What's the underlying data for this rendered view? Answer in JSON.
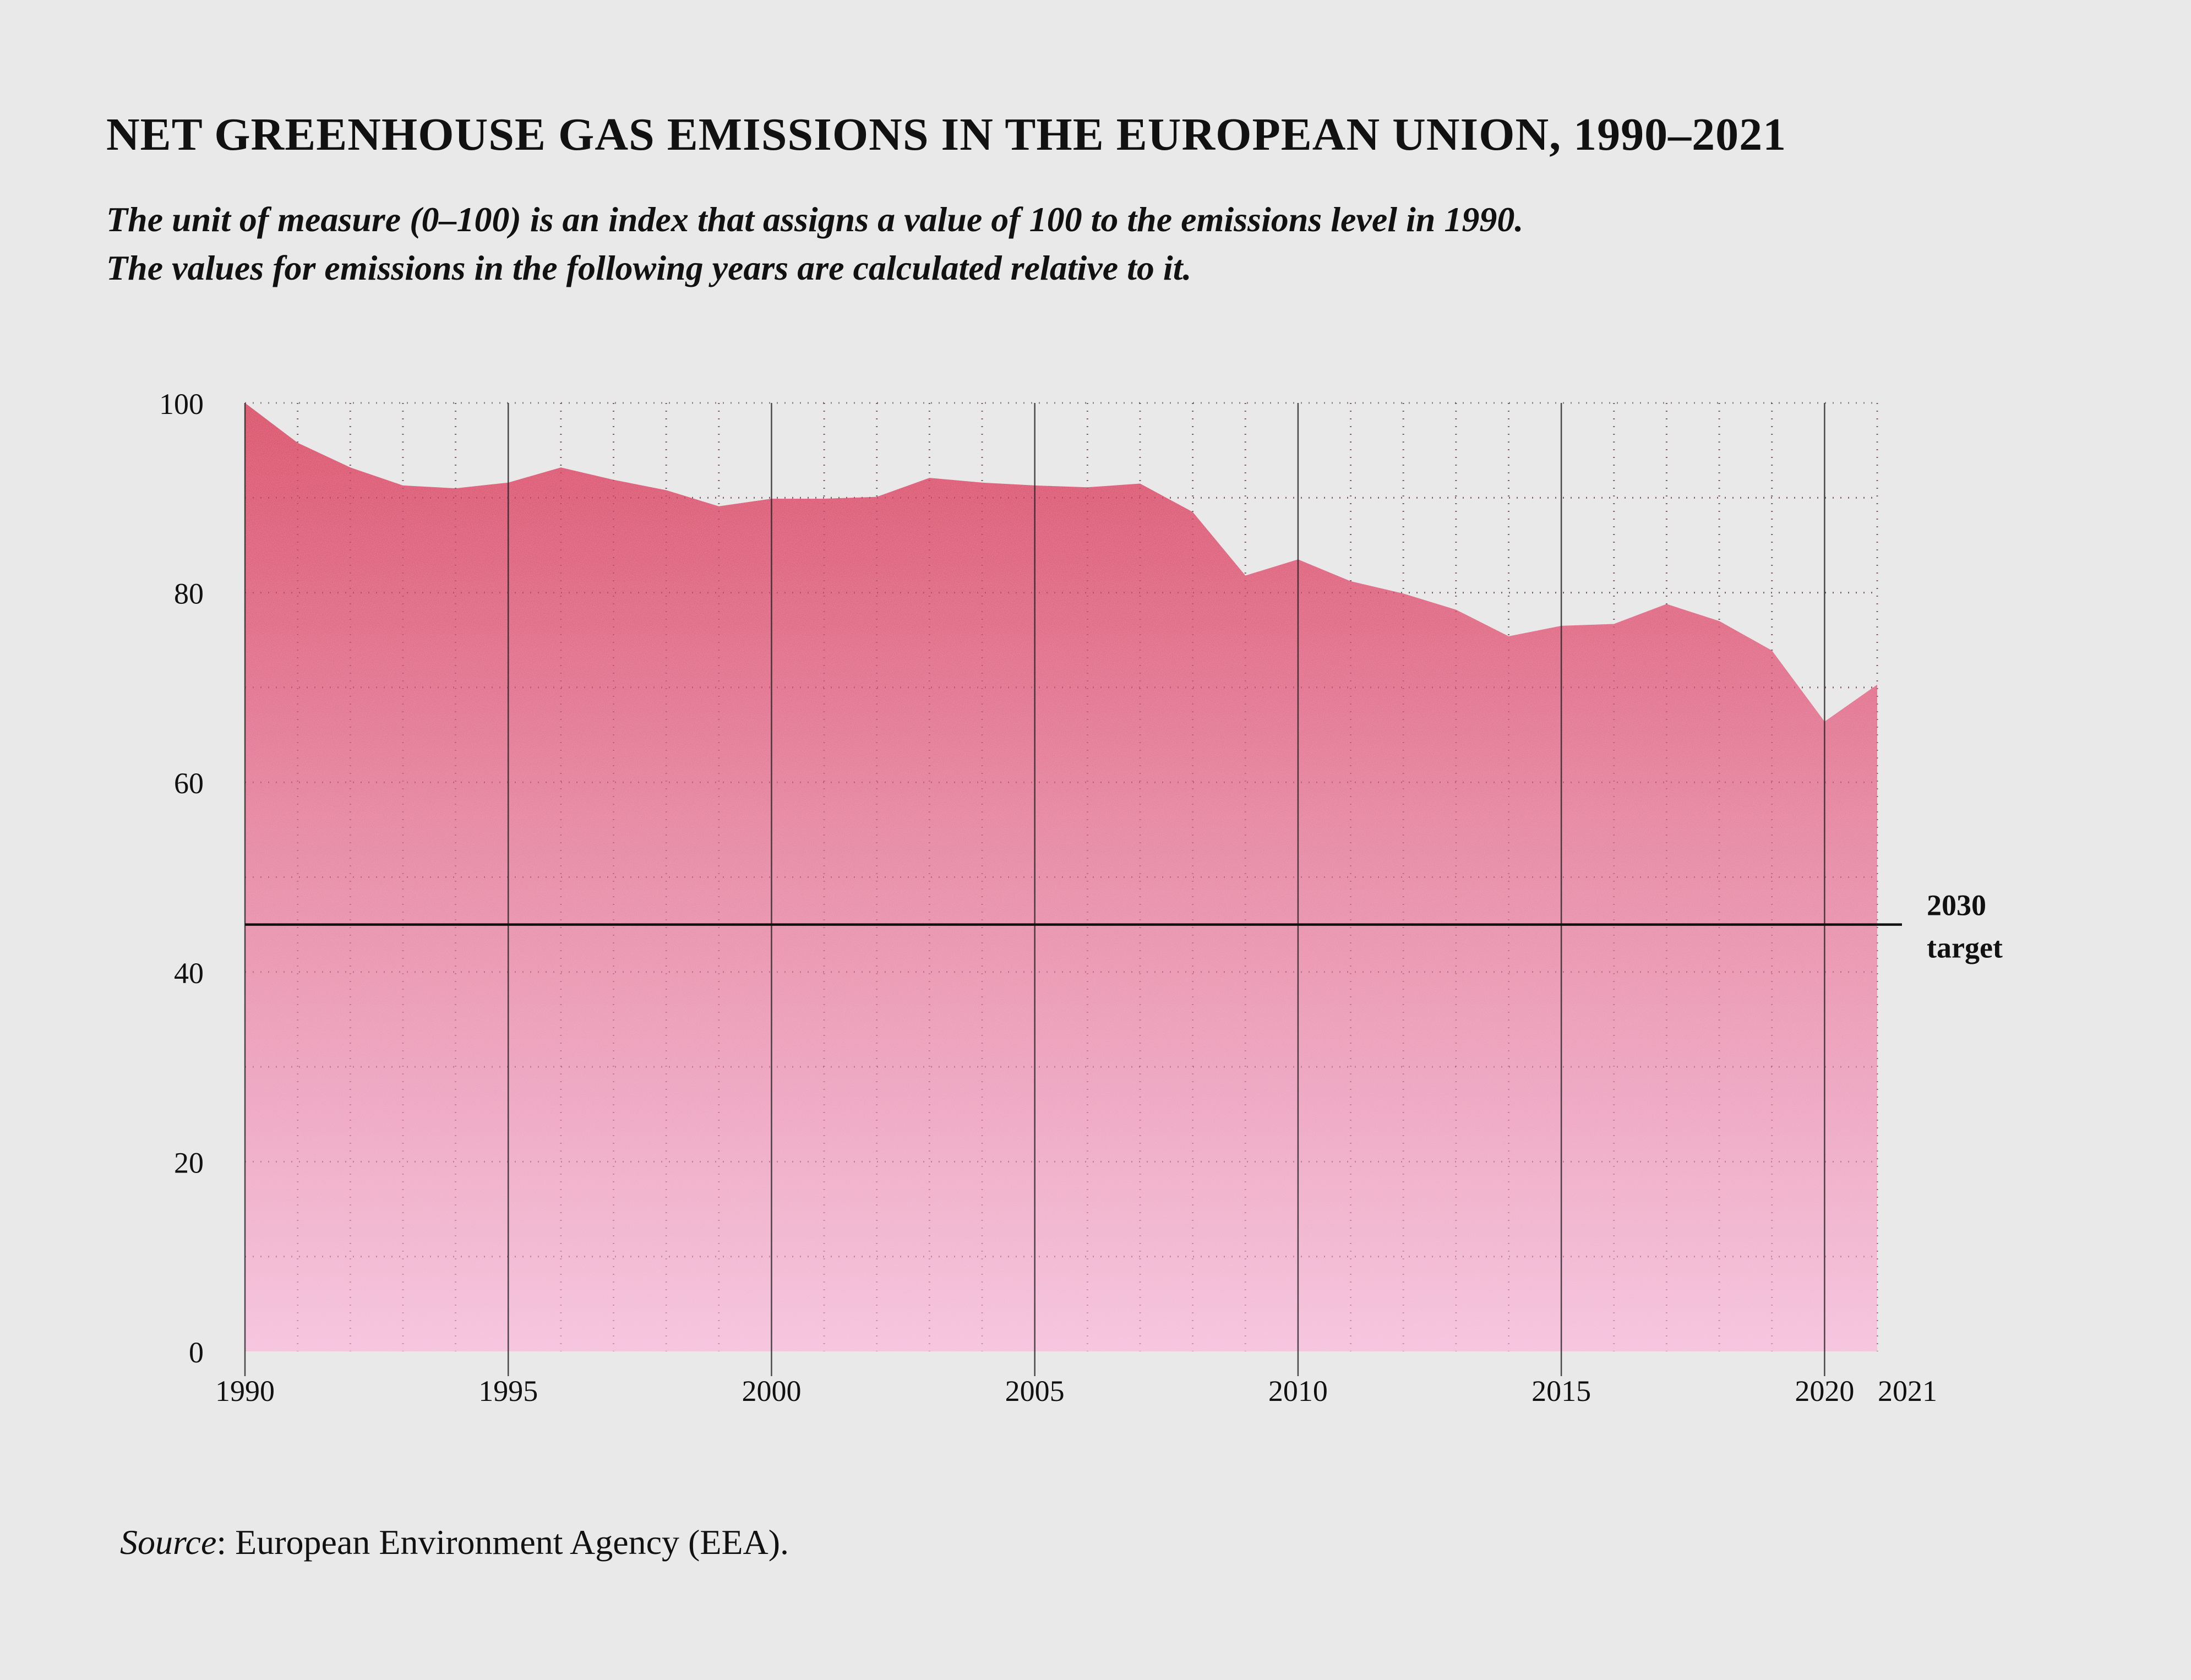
{
  "title": "NET GREENHOUSE GAS EMISSIONS IN THE EUROPEAN UNION, 1990–2021",
  "subtitle": {
    "line1": "The unit of measure (0–100) is an index that assigns a value of 100 to the emissions level in 1990.",
    "line2": "The values for emissions in the following years are calculated relative to it."
  },
  "source": {
    "label": "Source",
    "text": ": European Environment Agency (EEA)."
  },
  "colors": {
    "area_top": "#d9325a",
    "area_bottom": "#f5c0dc",
    "background": "#e9e9e9",
    "target_line": "#111111"
  },
  "chart_data": {
    "type": "area",
    "x": [
      1990,
      1991,
      1992,
      1993,
      1994,
      1995,
      1996,
      1997,
      1998,
      1999,
      2000,
      2001,
      2002,
      2003,
      2004,
      2005,
      2006,
      2007,
      2008,
      2009,
      2010,
      2011,
      2012,
      2013,
      2014,
      2015,
      2016,
      2017,
      2018,
      2019,
      2020,
      2021
    ],
    "series": [
      {
        "values": [
          100,
          95.8,
          93.2,
          91.3,
          91.0,
          91.6,
          93.2,
          91.9,
          90.8,
          89.1,
          89.9,
          89.9,
          90.1,
          92.1,
          91.6,
          91.3,
          91.1,
          91.5,
          88.5,
          81.8,
          83.5,
          81.2,
          79.9,
          78.2,
          75.4,
          76.5,
          76.7,
          78.8,
          77.0,
          73.9,
          66.4,
          70.3
        ]
      }
    ],
    "ylim": [
      0,
      100
    ],
    "xlim": [
      1990,
      2021
    ],
    "y_ticks": [
      0,
      20,
      40,
      60,
      80,
      100
    ],
    "x_ticks": [
      1990,
      1995,
      2000,
      2005,
      2010,
      2015,
      2020,
      2021
    ],
    "reference_line": {
      "value": 45,
      "label_line1": "2030",
      "label_line2": "target"
    },
    "grid": "vertical solid lines every 5 years, dotted lines each year and every 10 index points"
  }
}
